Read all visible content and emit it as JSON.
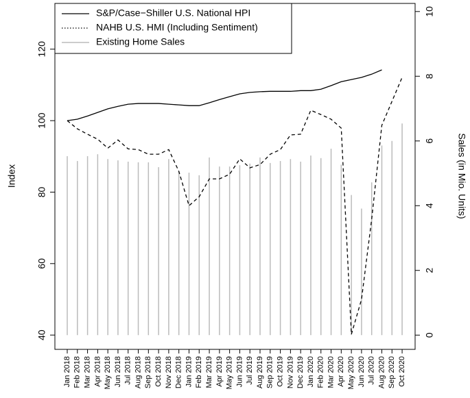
{
  "chart_data": {
    "type": "line",
    "y_label": "Index",
    "y2_label": "Sales (in Mio. Units)",
    "categories": [
      "Jan 2018",
      "Feb 2018",
      "Mar 2018",
      "Apr 2018",
      "May 2018",
      "Jun 2018",
      "Jul 2018",
      "Aug 2018",
      "Sep 2018",
      "Oct 2018",
      "Nov 2018",
      "Dec 2018",
      "Jan 2019",
      "Feb 2019",
      "Mar 2019",
      "Apr 2019",
      "May 2019",
      "Jun 2019",
      "Jul 2019",
      "Aug 2019",
      "Sep 2019",
      "Oct 2019",
      "Nov 2019",
      "Dec 2019",
      "Jan 2020",
      "Feb 2020",
      "Mar 2020",
      "Apr 2020",
      "May 2020",
      "Jun 2020",
      "Jul 2020",
      "Aug 2020",
      "Sep 2020",
      "Oct 2020"
    ],
    "series": [
      {
        "name": "S&P/Case−Shiller U.S. National HPI",
        "color": "#000000",
        "line_style": "solid",
        "values": [
          100,
          100.4,
          101.3,
          102.3,
          103.3,
          104,
          104.6,
          104.8,
          104.8,
          104.8,
          104.6,
          104.4,
          104.2,
          104.2,
          105,
          105.9,
          106.7,
          107.5,
          107.9,
          108.1,
          108.2,
          108.2,
          108.2,
          108.4,
          108.4,
          108.8,
          109.8,
          110.9,
          111.5,
          112.1,
          113,
          114.2,
          null,
          null
        ]
      },
      {
        "name": "NAHB U.S. HMI (Including Sentiment)",
        "color": "#000000",
        "line_style": "dashed",
        "values": [
          100,
          97.7,
          96.2,
          94.8,
          92.3,
          94.6,
          92.1,
          91.9,
          90.6,
          90.6,
          91.9,
          85.8,
          76.2,
          78.7,
          83.7,
          83.7,
          85,
          89.3,
          86.8,
          87.7,
          90.6,
          91.9,
          96,
          96.2,
          102.9,
          101.7,
          100.4,
          97.9,
          40.2,
          50,
          72.4,
          98.7,
          105.4,
          112.1
        ]
      },
      {
        "name": "Existing Home Sales",
        "color": "#bbbbbb",
        "type": "bar",
        "axis": "y2",
        "values": [
          5.53,
          5.38,
          5.53,
          5.59,
          5.44,
          5.4,
          5.36,
          5.34,
          5.34,
          5.19,
          5.44,
          5.06,
          5.02,
          4.94,
          5.49,
          5.21,
          5.21,
          5.25,
          5.3,
          5.49,
          5.32,
          5.38,
          5.44,
          5.36,
          5.55,
          5.47,
          5.76,
          5.27,
          4.33,
          3.91,
          4.72,
          5.86,
          6.0,
          6.54
        ]
      }
    ],
    "ylim": [
      36,
      132.8
    ],
    "yticks": [
      40,
      60,
      80,
      100,
      120
    ],
    "y2lim": [
      -0.44,
      10.25
    ],
    "y2ticks": [
      0,
      2,
      4,
      6,
      8,
      10
    ],
    "legend": "top-left"
  }
}
